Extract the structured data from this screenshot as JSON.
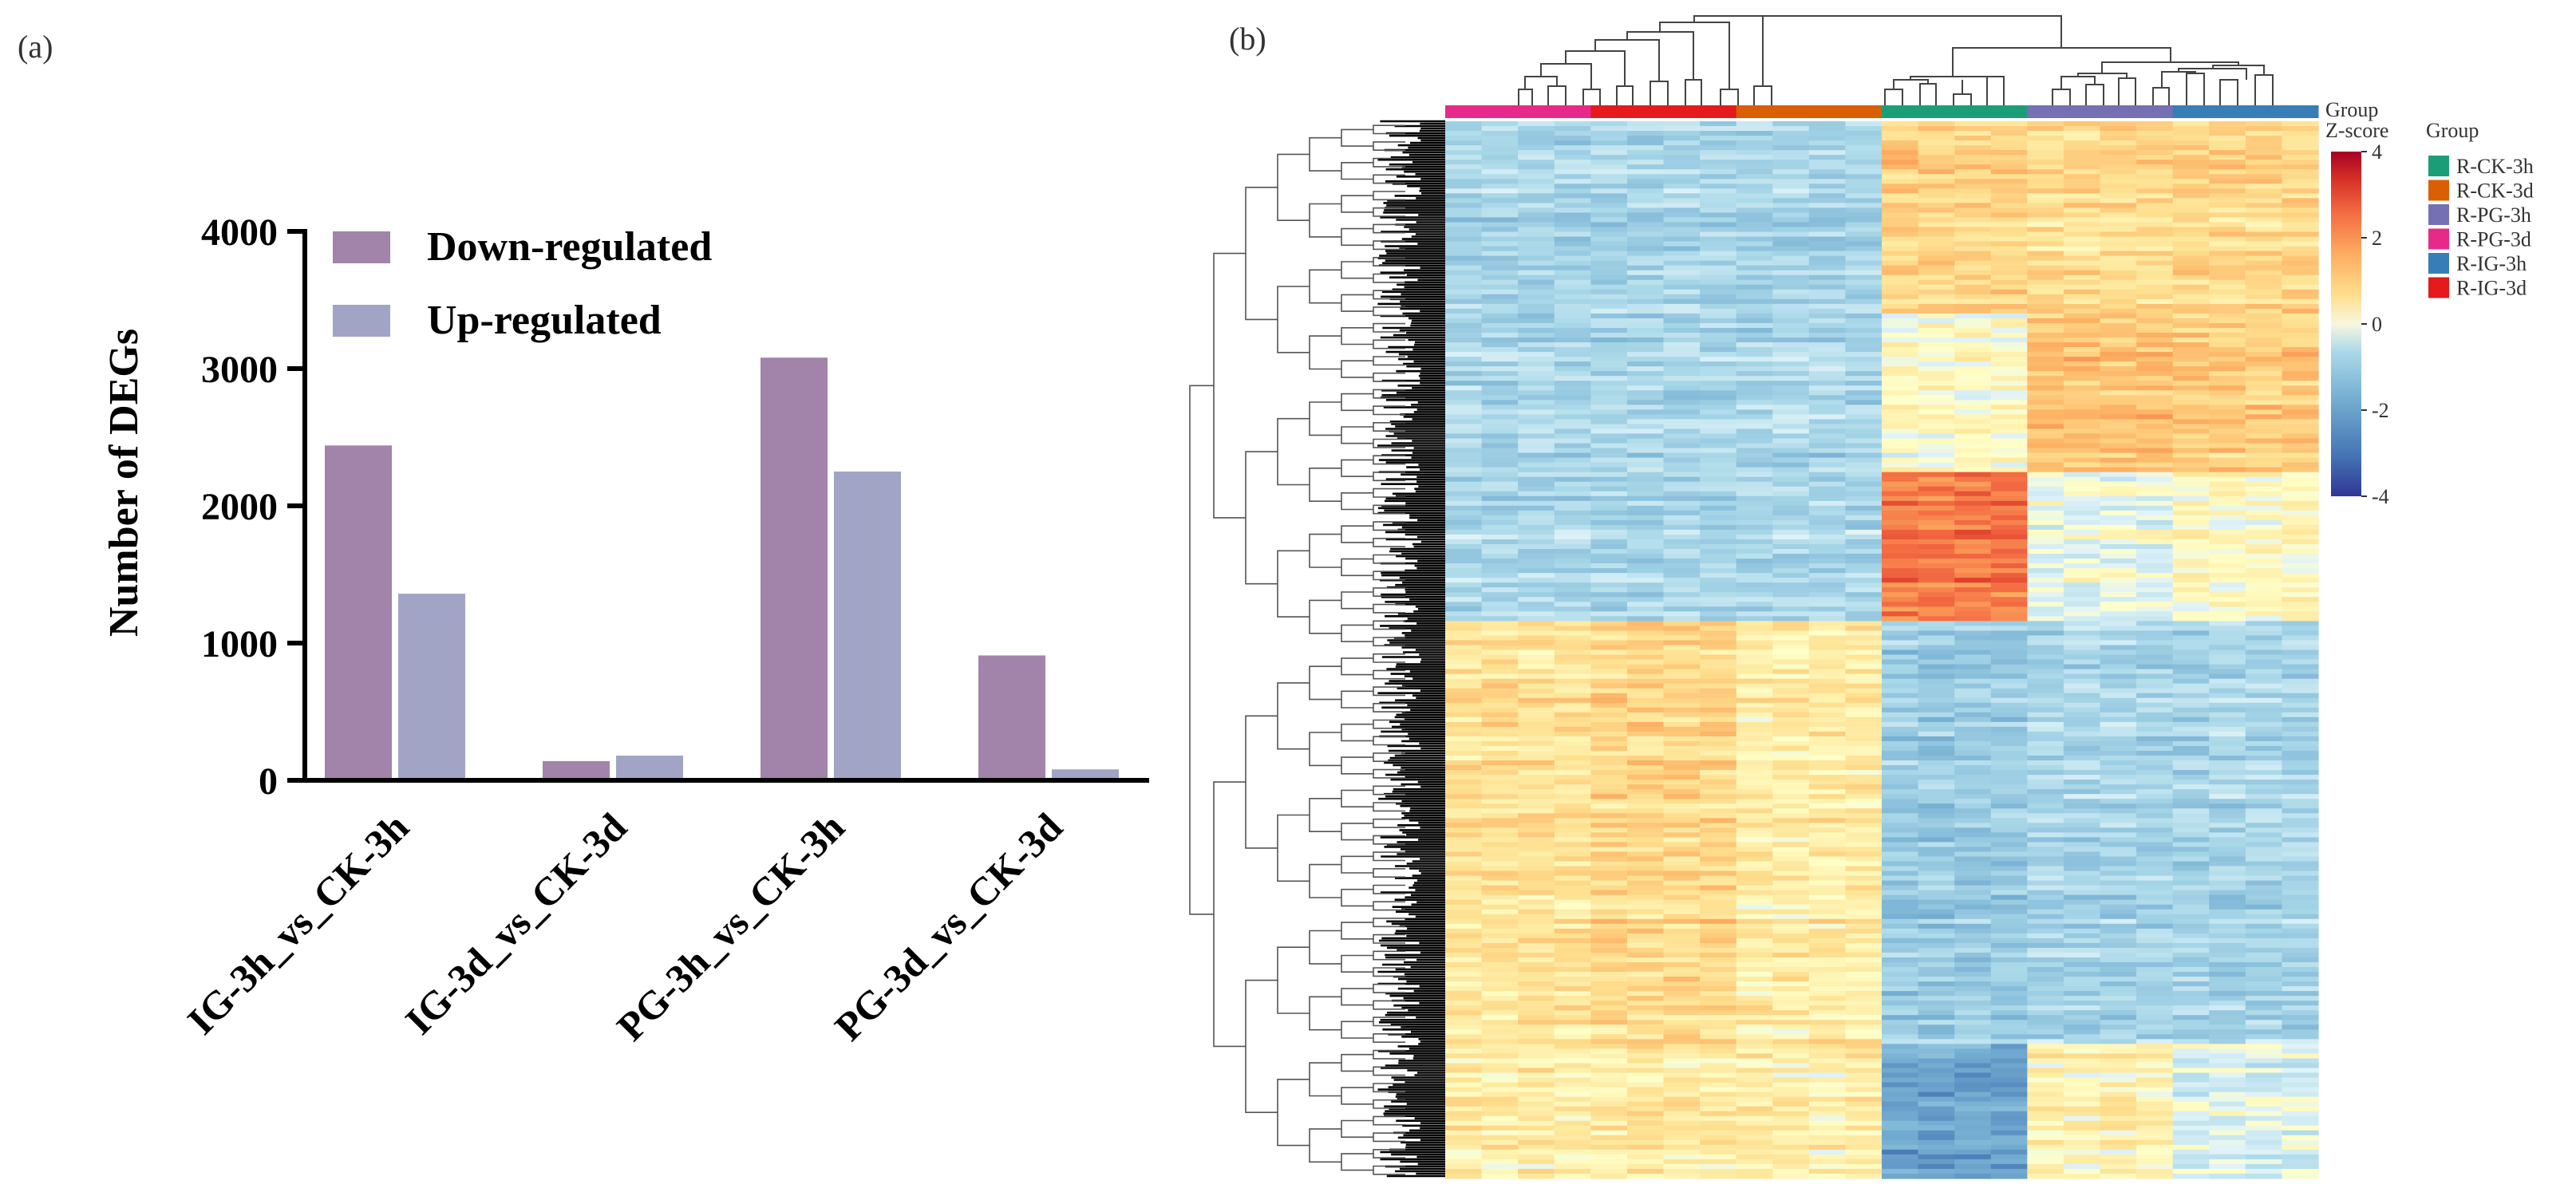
{
  "panels": {
    "a": {
      "label": "(a)"
    },
    "b": {
      "label": "(b)"
    }
  },
  "chart_data": [
    {
      "type": "bar",
      "categories": [
        "IG-3h_vs_CK-3h",
        "IG-3d_vs_CK-3d",
        "PG-3h_vs_CK-3h",
        "PG-3d_vs_CK-3d"
      ],
      "series": [
        {
          "name": "Down-regulated",
          "values": [
            2440,
            140,
            3080,
            910
          ],
          "color": "#a283a9"
        },
        {
          "name": "Up-regulated",
          "values": [
            1360,
            180,
            2250,
            80
          ],
          "color": "#a2a4c6"
        }
      ],
      "ylabel": "Number of DEGs",
      "xlabel": "",
      "ylim": [
        0,
        4000
      ],
      "yticks": [
        0,
        1000,
        2000,
        3000,
        4000
      ],
      "legend_position": "top",
      "grid": false
    },
    {
      "type": "heatmap",
      "column_annotation_label": "Group",
      "colorbar_title": "Z-score",
      "colorbar_range": [
        -4,
        4
      ],
      "colorbar_ticks": [
        4,
        2,
        0,
        -2,
        -4
      ],
      "colorscale": [
        "#313695",
        "#4575b4",
        "#74add1",
        "#abd9e9",
        "#e0f3f8",
        "#ffffbf",
        "#fee090",
        "#fdae61",
        "#f46d43",
        "#d73027",
        "#a50026"
      ],
      "column_group_order": [
        "R-PG-3d",
        "R-IG-3d",
        "R-CK-3d",
        "R-CK-3h",
        "R-PG-3h",
        "R-IG-3h"
      ],
      "legend_title": "Group",
      "groups": [
        {
          "name": "R-CK-3h",
          "color": "#1b9e77"
        },
        {
          "name": "R-CK-3d",
          "color": "#d95f02"
        },
        {
          "name": "R-PG-3h",
          "color": "#7570b3"
        },
        {
          "name": "R-PG-3d",
          "color": "#e7298a"
        },
        {
          "name": "R-IG-3h",
          "color": "#377eb8"
        },
        {
          "name": "R-IG-3d",
          "color": "#e41a1c"
        }
      ],
      "row_blocks": [
        {
          "rows": "top",
          "R-PG-3d": -1.1,
          "R-IG-3d": -1.1,
          "R-CK-3d": -1.1,
          "R-CK-3h": 1.0,
          "R-PG-3h": 0.8,
          "R-IG-3h": 0.9
        },
        {
          "rows": "upper",
          "R-PG-3d": -1.1,
          "R-IG-3d": -1.1,
          "R-CK-3d": -1.1,
          "R-CK-3h": 0.0,
          "R-PG-3h": 1.2,
          "R-IG-3h": 1.1
        },
        {
          "rows": "middle",
          "R-PG-3d": -1.0,
          "R-IG-3d": -1.0,
          "R-CK-3d": -1.0,
          "R-CK-3h": 2.3,
          "R-PG-3h": -0.2,
          "R-IG-3h": 0.2
        },
        {
          "rows": "lower",
          "R-PG-3d": 0.7,
          "R-IG-3d": 0.9,
          "R-CK-3d": 0.5,
          "R-CK-3h": -1.3,
          "R-PG-3h": -1.1,
          "R-IG-3h": -1.1
        },
        {
          "rows": "bottom",
          "R-PG-3d": 0.5,
          "R-IG-3d": 0.5,
          "R-CK-3d": 0.4,
          "R-CK-3h": -2.2,
          "R-PG-3h": 0.3,
          "R-IG-3h": -0.4
        }
      ]
    }
  ]
}
